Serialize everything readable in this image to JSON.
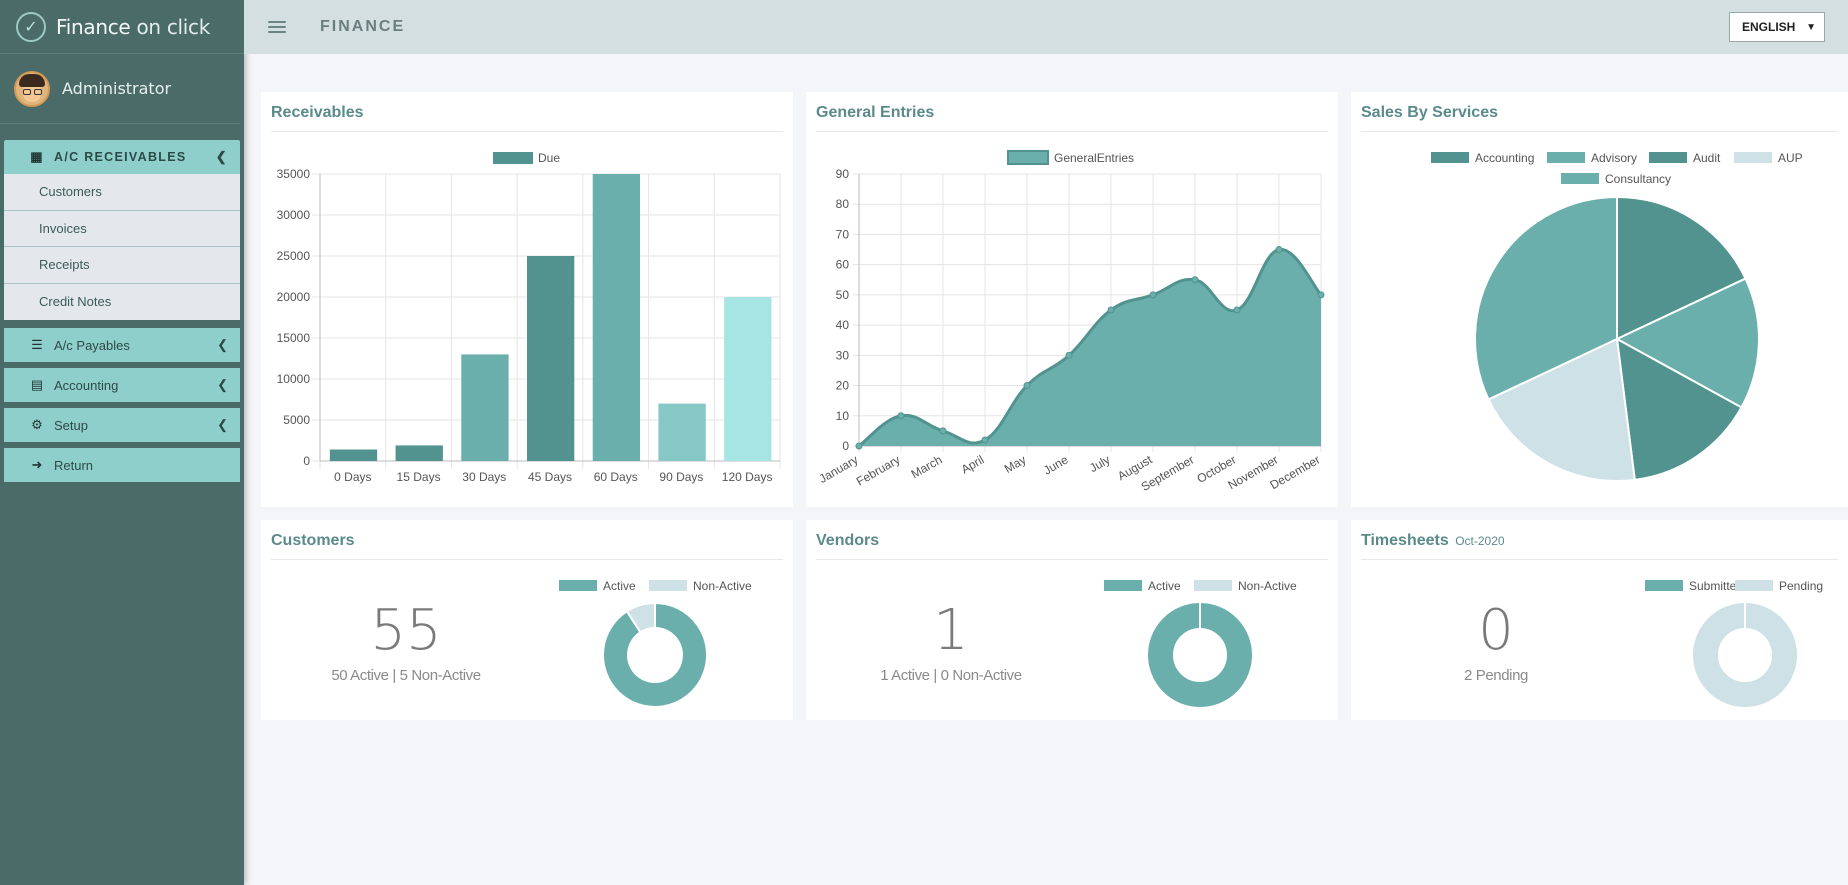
{
  "brand": {
    "name_bold": "Finance",
    "name_light": " on click"
  },
  "user": {
    "name": "Administrator"
  },
  "topbar": {
    "title": "FINANCE",
    "language": "ENGLISH"
  },
  "sidebar": {
    "active_group": "A/C RECEIVABLES",
    "submenu": [
      "Customers",
      "Invoices",
      "Receipts",
      "Credit Notes"
    ],
    "items": [
      {
        "label": "A/c Payables",
        "icon": "book-icon"
      },
      {
        "label": "Accounting",
        "icon": "money-icon"
      },
      {
        "label": "Setup",
        "icon": "gear-icon"
      },
      {
        "label": "Return",
        "icon": "sign-out-icon"
      }
    ]
  },
  "panels": {
    "receivables": {
      "title": "Receivables"
    },
    "general": {
      "title": "General Entries"
    },
    "sales": {
      "title": "Sales By Services"
    },
    "customers": {
      "title": "Customers",
      "count": "55",
      "summary": "50 Active | 5 Non-Active",
      "legend": [
        "Active",
        "Non-Active"
      ]
    },
    "vendors": {
      "title": "Vendors",
      "count": "1",
      "summary": "1 Active | 0 Non-Active",
      "legend": [
        "Active",
        "Non-Active"
      ]
    },
    "timesheets": {
      "title": "Timesheets",
      "subtitle": "Oct-2020",
      "count": "0",
      "summary": "2 Pending",
      "legend": [
        "Submitted",
        "Pending"
      ]
    }
  },
  "colors": {
    "dark": "#52938f",
    "mid": "#6aafac",
    "light": "#86c8c5",
    "pale": "#a7e4e4",
    "grey": "#cde1e6"
  },
  "chart_data": [
    {
      "type": "bar",
      "title": "Receivables",
      "categories": [
        "0 Days",
        "15 Days",
        "30 Days",
        "45 Days",
        "60 Days",
        "90 Days",
        "120 Days"
      ],
      "series": [
        {
          "name": "Due",
          "values": [
            1400,
            1900,
            13000,
            25000,
            35000,
            7000,
            20000
          ]
        }
      ],
      "bar_colors": [
        "#52938f",
        "#52938f",
        "#6aafac",
        "#52938f",
        "#6aafac",
        "#86c8c5",
        "#a7e4e4"
      ],
      "ylim": [
        0,
        35000
      ],
      "yticks": [
        0,
        5000,
        10000,
        15000,
        20000,
        25000,
        30000,
        35000
      ],
      "legend": "top"
    },
    {
      "type": "area",
      "title": "General Entries",
      "categories": [
        "January",
        "February",
        "March",
        "April",
        "May",
        "June",
        "July",
        "August",
        "September",
        "October",
        "November",
        "December"
      ],
      "series": [
        {
          "name": "GeneralEntries",
          "values": [
            0,
            10,
            5,
            2,
            20,
            30,
            45,
            50,
            55,
            45,
            65,
            50
          ]
        }
      ],
      "ylim": [
        0,
        90
      ],
      "yticks": [
        0,
        10,
        20,
        30,
        40,
        50,
        60,
        70,
        80,
        90
      ],
      "grid": true,
      "legend": "top"
    },
    {
      "type": "pie",
      "title": "Sales By Services",
      "labels": [
        "Accounting",
        "Advisory",
        "Audit",
        "AUP",
        "Consultancy"
      ],
      "values": [
        18,
        15,
        15,
        20,
        32
      ],
      "slice_colors": [
        "#52938f",
        "#6aafac",
        "#52938f",
        "#cde1e6",
        "#6aafac"
      ],
      "legend": "top"
    },
    {
      "type": "pie",
      "title": "Customers",
      "labels": [
        "Active",
        "Non-Active"
      ],
      "values": [
        50,
        5
      ],
      "slice_colors": [
        "#6aafac",
        "#cde1e6"
      ]
    },
    {
      "type": "pie",
      "title": "Vendors",
      "labels": [
        "Active",
        "Non-Active"
      ],
      "values": [
        1,
        0
      ],
      "slice_colors": [
        "#6aafac",
        "#cde1e6"
      ]
    },
    {
      "type": "pie",
      "title": "Timesheets",
      "labels": [
        "Submitted",
        "Pending"
      ],
      "values": [
        0,
        2
      ],
      "slice_colors": [
        "#6aafac",
        "#cde1e6"
      ]
    }
  ]
}
